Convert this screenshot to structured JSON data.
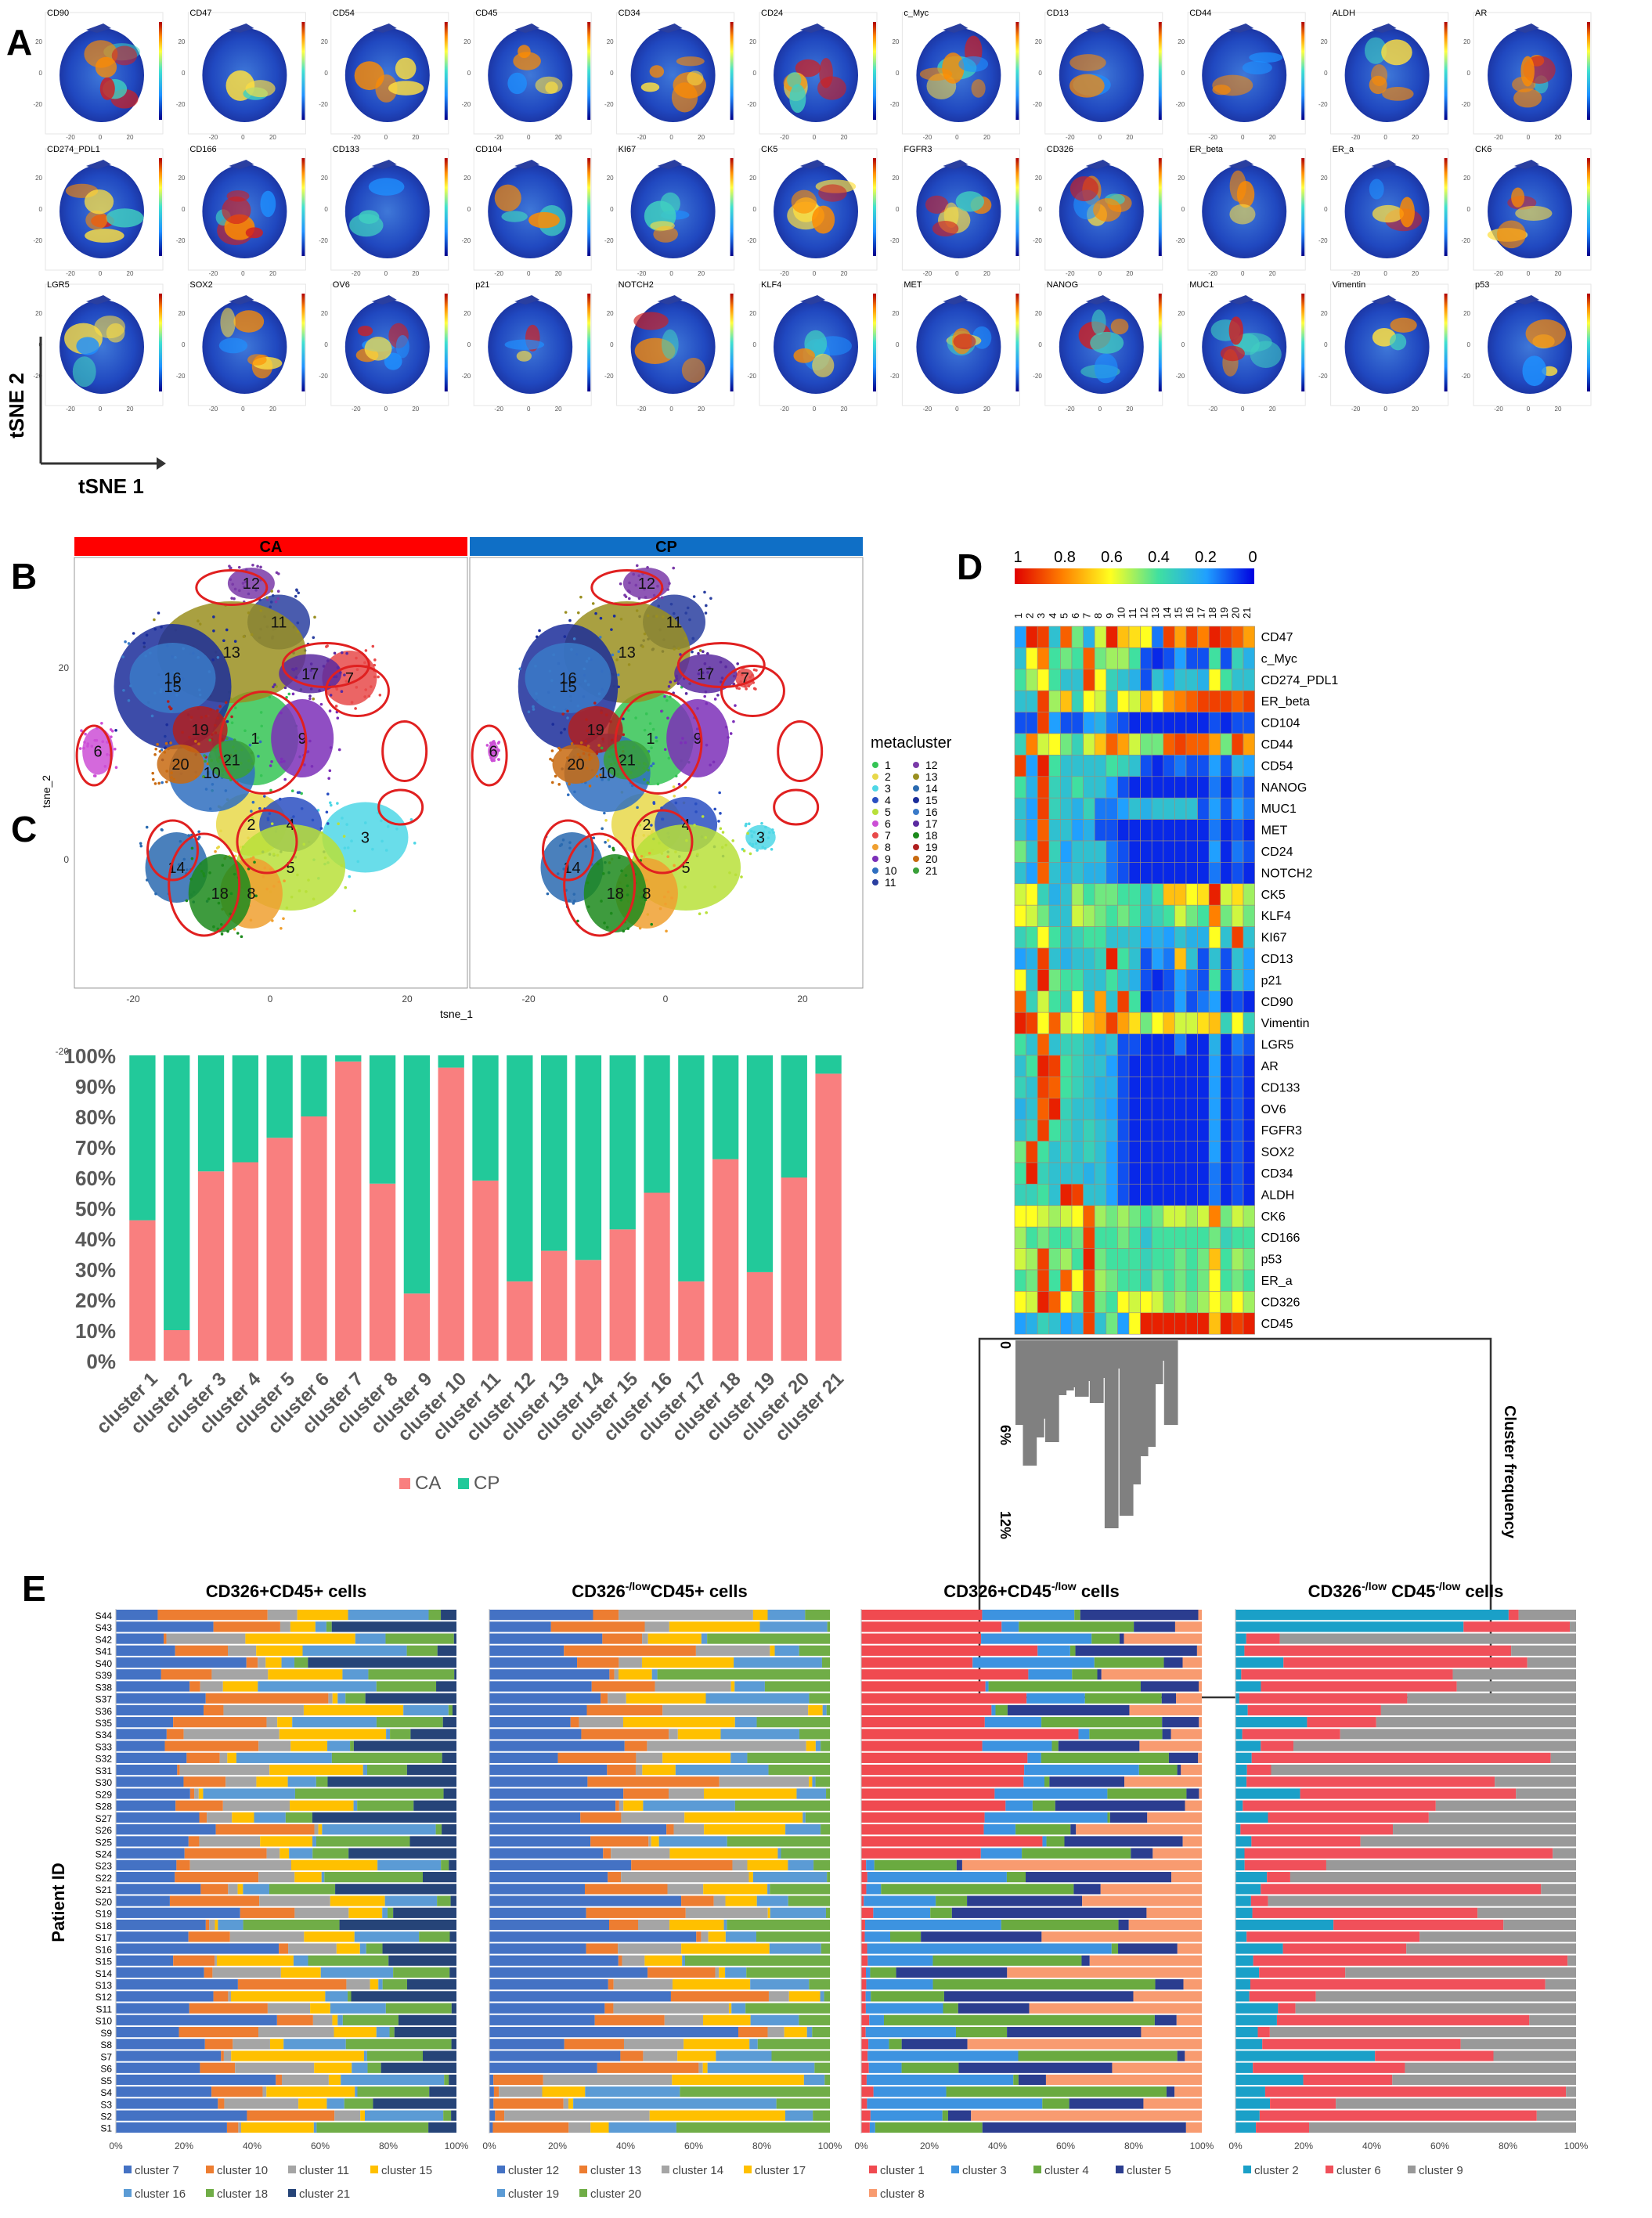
{
  "panels": {
    "A": "A",
    "B": "B",
    "C": "C",
    "D": "D",
    "E": "E"
  },
  "colors": {
    "CA": "#f97f7f",
    "CP": "#22c99a",
    "header_CA": "#ff0000",
    "header_CP": "#0f6fc6",
    "heat_low": "#0000e0",
    "heat_high": "#e00000",
    "freq_bar": "#808080",
    "circle": "#e02020"
  },
  "panel_a": {
    "axis_y": "tSNE 2",
    "axis_x": "tSNE 1",
    "markers": [
      [
        "CD90",
        "CD47",
        "CD54",
        "CD45",
        "CD34",
        "CD24",
        "c_Myc",
        "CD13",
        "CD44",
        "ALDH",
        "AR"
      ],
      [
        "CD274_PDL1",
        "CD166",
        "CD133",
        "CD104",
        "KI67",
        "CK5",
        "FGFR3",
        "CD326",
        "ER_beta",
        "ER_a",
        "CK6"
      ],
      [
        "LGR5",
        "SOX2",
        "OV6",
        "p21",
        "NOTCH2",
        "KLF4",
        "MET",
        "NANOG",
        "MUC1",
        "Vimentin",
        "p53"
      ]
    ],
    "tick_x": [
      "-20",
      "0",
      "20"
    ],
    "tick_y": [
      "20",
      "0",
      "-20"
    ]
  },
  "panel_b": {
    "facets": [
      "CA",
      "CP"
    ],
    "x_label": "tsne_1",
    "y_label": "tsne_2",
    "x_ticks": [
      "-20",
      "0",
      "20"
    ],
    "y_ticks": [
      "20",
      "0",
      "-20"
    ],
    "legend_title": "metacluster",
    "clusters": [
      "1",
      "2",
      "3",
      "4",
      "5",
      "6",
      "7",
      "8",
      "9",
      "10",
      "11",
      "12",
      "13",
      "14",
      "15",
      "16",
      "17",
      "18",
      "19",
      "20",
      "21"
    ],
    "cluster_colors": [
      "#35c455",
      "#e8d84a",
      "#4fd7e6",
      "#2a4fc2",
      "#b8e03a",
      "#cc4fd6",
      "#e84a4a",
      "#f0a030",
      "#7c2fb8",
      "#2f6fc0",
      "#2a3fa0",
      "#7a3aa8",
      "#9a8f20",
      "#2a6ab0",
      "#1b2d9a",
      "#3a7ac8",
      "#5a2aa0",
      "#1c8a1c",
      "#b02020",
      "#c86a10",
      "#3aa03a"
    ]
  },
  "chart_data": [
    {
      "type": "bar",
      "stacked": true,
      "categories": [
        "cluster 1",
        "cluster 2",
        "cluster 3",
        "cluster 4",
        "cluster 5",
        "cluster 6",
        "cluster 7",
        "cluster 8",
        "cluster 9",
        "cluster 10",
        "cluster 11",
        "cluster 12",
        "cluster 13",
        "cluster 14",
        "cluster 15",
        "cluster 16",
        "cluster 17",
        "cluster 18",
        "cluster 19",
        "cluster 20",
        "cluster 21"
      ],
      "series": [
        {
          "name": "CA",
          "values": [
            46,
            10,
            62,
            65,
            73,
            80,
            98,
            58,
            22,
            96,
            59,
            26,
            36,
            33,
            43,
            55,
            26,
            66,
            29,
            60,
            94
          ]
        },
        {
          "name": "CP",
          "values": [
            54,
            90,
            38,
            35,
            27,
            20,
            2,
            42,
            78,
            4,
            41,
            74,
            64,
            67,
            57,
            45,
            74,
            34,
            71,
            40,
            6
          ]
        }
      ],
      "y_ticks": [
        "0%",
        "10%",
        "20%",
        "30%",
        "40%",
        "50%",
        "60%",
        "70%",
        "80%",
        "90%",
        "100%"
      ],
      "ylim": [
        0,
        100
      ],
      "legend": [
        "CA",
        "CP"
      ],
      "legend_placement": "bottom"
    },
    {
      "type": "heatmap",
      "colorbar_ticks": [
        "1",
        "0.8",
        "0.6",
        "0.4",
        "0.2",
        "0"
      ],
      "columns": [
        "1",
        "2",
        "3",
        "4",
        "5",
        "6",
        "7",
        "8",
        "9",
        "10",
        "11",
        "12",
        "13",
        "14",
        "15",
        "16",
        "17",
        "18",
        "19",
        "20",
        "21"
      ],
      "rows": [
        "CD47",
        "c_Myc",
        "CD274_PDL1",
        "ER_beta",
        "CD104",
        "CD44",
        "CD54",
        "NANOG",
        "MUC1",
        "MET",
        "CD24",
        "NOTCH2",
        "CK5",
        "KLF4",
        "KI67",
        "CD13",
        "p21",
        "CD90",
        "Vimentin",
        "LGR5",
        "AR",
        "CD133",
        "OV6",
        "FGFR3",
        "SOX2",
        "CD34",
        "ALDH",
        "CK6",
        "CD166",
        "p53",
        "ER_a",
        "CD326",
        "CD45"
      ],
      "values": [
        [
          0.2,
          0.95,
          0.9,
          0.3,
          0.85,
          0.45,
          0.25,
          0.55,
          0.95,
          0.7,
          0.65,
          0.6,
          0.15,
          0.9,
          0.75,
          0.9,
          0.8,
          0.95,
          0.9,
          0.85,
          0.75
        ],
        [
          0.3,
          0.6,
          0.8,
          0.4,
          0.45,
          0.4,
          0.85,
          0.45,
          0.5,
          0.5,
          0.4,
          0.1,
          0.05,
          0.1,
          0.2,
          0.1,
          0.1,
          0.4,
          0.1,
          0.35,
          0.25
        ],
        [
          0.4,
          0.5,
          0.6,
          0.4,
          0.3,
          0.3,
          0.9,
          0.6,
          0.35,
          0.3,
          0.25,
          0.1,
          0.3,
          0.2,
          0.3,
          0.3,
          0.25,
          0.6,
          0.4,
          0.3,
          0.3
        ],
        [
          0.3,
          0.3,
          0.9,
          0.5,
          0.7,
          0.35,
          0.6,
          0.55,
          0.3,
          0.6,
          0.55,
          0.7,
          0.6,
          0.75,
          0.8,
          0.85,
          0.9,
          0.9,
          0.9,
          0.85,
          0.9
        ],
        [
          0.1,
          0.1,
          0.9,
          0.2,
          0.1,
          0.1,
          0.2,
          0.25,
          0.15,
          0.1,
          0.05,
          0.05,
          0.05,
          0.05,
          0.05,
          0.05,
          0.05,
          0.1,
          0.05,
          0.1,
          0.1
        ],
        [
          0.35,
          0.8,
          0.55,
          0.6,
          0.45,
          0.35,
          0.55,
          0.7,
          0.85,
          0.75,
          0.55,
          0.45,
          0.45,
          0.85,
          0.9,
          0.85,
          0.85,
          0.75,
          0.45,
          0.9,
          0.75
        ],
        [
          0.9,
          0.2,
          0.95,
          0.4,
          0.3,
          0.3,
          0.3,
          0.3,
          0.4,
          0.35,
          0.3,
          0.1,
          0.05,
          0.1,
          0.15,
          0.1,
          0.1,
          0.2,
          0.1,
          0.25,
          0.2
        ],
        [
          0.4,
          0.25,
          0.9,
          0.35,
          0.3,
          0.4,
          0.3,
          0.3,
          0.2,
          0.1,
          0.05,
          0.05,
          0.05,
          0.05,
          0.05,
          0.05,
          0.05,
          0.15,
          0.05,
          0.15,
          0.1
        ],
        [
          0.3,
          0.2,
          0.9,
          0.35,
          0.3,
          0.25,
          0.35,
          0.15,
          0.15,
          0.2,
          0.3,
          0.25,
          0.3,
          0.3,
          0.3,
          0.3,
          0.1,
          0.2,
          0.1,
          0.2,
          0.15
        ],
        [
          0.3,
          0.2,
          0.85,
          0.3,
          0.3,
          0.2,
          0.25,
          0.1,
          0.1,
          0.05,
          0.05,
          0.05,
          0.05,
          0.05,
          0.05,
          0.05,
          0.05,
          0.15,
          0.05,
          0.1,
          0.05
        ],
        [
          0.45,
          0.3,
          0.9,
          0.35,
          0.2,
          0.3,
          0.3,
          0.3,
          0.15,
          0.1,
          0.05,
          0.05,
          0.05,
          0.05,
          0.05,
          0.05,
          0.05,
          0.2,
          0.05,
          0.15,
          0.1
        ],
        [
          0.3,
          0.2,
          0.85,
          0.3,
          0.25,
          0.3,
          0.25,
          0.25,
          0.15,
          0.1,
          0.05,
          0.05,
          0.05,
          0.05,
          0.05,
          0.05,
          0.05,
          0.15,
          0.05,
          0.1,
          0.05
        ],
        [
          0.55,
          0.6,
          0.35,
          0.25,
          0.3,
          0.5,
          0.4,
          0.45,
          0.45,
          0.4,
          0.4,
          0.3,
          0.4,
          0.7,
          0.7,
          0.6,
          0.65,
          0.95,
          0.55,
          0.65,
          0.5
        ],
        [
          0.6,
          0.55,
          0.45,
          0.3,
          0.3,
          0.55,
          0.5,
          0.45,
          0.4,
          0.45,
          0.4,
          0.3,
          0.35,
          0.4,
          0.55,
          0.45,
          0.4,
          0.8,
          0.45,
          0.55,
          0.45
        ],
        [
          0.35,
          0.4,
          0.6,
          0.4,
          0.3,
          0.35,
          0.4,
          0.4,
          0.3,
          0.3,
          0.3,
          0.2,
          0.25,
          0.2,
          0.3,
          0.25,
          0.25,
          0.6,
          0.3,
          0.9,
          0.3
        ],
        [
          0.2,
          0.25,
          0.9,
          0.3,
          0.25,
          0.3,
          0.3,
          0.35,
          0.95,
          0.4,
          0.3,
          0.1,
          0.2,
          0.15,
          0.7,
          0.3,
          0.1,
          0.3,
          0.1,
          0.3,
          0.2
        ],
        [
          0.6,
          0.3,
          0.95,
          0.45,
          0.4,
          0.4,
          0.3,
          0.3,
          0.4,
          0.3,
          0.25,
          0.1,
          0.05,
          0.1,
          0.2,
          0.15,
          0.1,
          0.4,
          0.1,
          0.3,
          0.2
        ],
        [
          0.85,
          0.35,
          0.55,
          0.4,
          0.35,
          0.6,
          0.3,
          0.75,
          0.3,
          0.9,
          0.4,
          0.05,
          0.1,
          0.1,
          0.2,
          0.1,
          0.15,
          0.2,
          0.05,
          0.1,
          0.05
        ],
        [
          0.95,
          0.9,
          0.6,
          0.85,
          0.55,
          0.6,
          0.7,
          0.75,
          0.9,
          0.75,
          0.65,
          0.45,
          0.6,
          0.7,
          0.55,
          0.55,
          0.65,
          0.7,
          0.35,
          0.6,
          0.35
        ],
        [
          0.4,
          0.3,
          0.85,
          0.3,
          0.35,
          0.35,
          0.3,
          0.25,
          0.3,
          0.1,
          0.1,
          0.05,
          0.05,
          0.05,
          0.15,
          0.05,
          0.05,
          0.25,
          0.05,
          0.15,
          0.1
        ],
        [
          0.3,
          0.4,
          0.95,
          0.9,
          0.4,
          0.35,
          0.3,
          0.3,
          0.2,
          0.1,
          0.05,
          0.05,
          0.05,
          0.05,
          0.05,
          0.05,
          0.05,
          0.2,
          0.05,
          0.1,
          0.05
        ],
        [
          0.35,
          0.3,
          0.9,
          0.85,
          0.4,
          0.35,
          0.3,
          0.25,
          0.25,
          0.1,
          0.05,
          0.05,
          0.05,
          0.05,
          0.05,
          0.05,
          0.05,
          0.2,
          0.05,
          0.1,
          0.05
        ],
        [
          0.25,
          0.3,
          0.85,
          0.95,
          0.35,
          0.3,
          0.3,
          0.25,
          0.2,
          0.1,
          0.05,
          0.05,
          0.05,
          0.05,
          0.05,
          0.05,
          0.05,
          0.2,
          0.05,
          0.1,
          0.05
        ],
        [
          0.3,
          0.35,
          0.9,
          0.4,
          0.35,
          0.3,
          0.35,
          0.3,
          0.25,
          0.1,
          0.05,
          0.05,
          0.05,
          0.05,
          0.05,
          0.05,
          0.05,
          0.2,
          0.05,
          0.1,
          0.05
        ],
        [
          0.45,
          0.9,
          0.4,
          0.3,
          0.35,
          0.3,
          0.35,
          0.3,
          0.2,
          0.1,
          0.05,
          0.05,
          0.05,
          0.05,
          0.05,
          0.05,
          0.05,
          0.2,
          0.05,
          0.1,
          0.05
        ],
        [
          0.4,
          0.95,
          0.35,
          0.3,
          0.3,
          0.3,
          0.25,
          0.3,
          0.2,
          0.1,
          0.05,
          0.05,
          0.05,
          0.05,
          0.05,
          0.05,
          0.05,
          0.15,
          0.05,
          0.1,
          0.05
        ],
        [
          0.35,
          0.35,
          0.4,
          0.3,
          0.95,
          0.9,
          0.3,
          0.3,
          0.2,
          0.1,
          0.05,
          0.05,
          0.05,
          0.05,
          0.05,
          0.05,
          0.05,
          0.15,
          0.05,
          0.1,
          0.05
        ],
        [
          0.6,
          0.6,
          0.55,
          0.5,
          0.55,
          0.6,
          0.85,
          0.5,
          0.45,
          0.5,
          0.45,
          0.4,
          0.45,
          0.55,
          0.55,
          0.5,
          0.55,
          0.8,
          0.45,
          0.55,
          0.5
        ],
        [
          0.5,
          0.4,
          0.45,
          0.4,
          0.4,
          0.45,
          0.9,
          0.4,
          0.4,
          0.45,
          0.4,
          0.3,
          0.4,
          0.4,
          0.4,
          0.4,
          0.4,
          0.45,
          0.35,
          0.4,
          0.4
        ],
        [
          0.55,
          0.5,
          0.9,
          0.45,
          0.5,
          0.4,
          0.95,
          0.45,
          0.4,
          0.4,
          0.4,
          0.35,
          0.4,
          0.4,
          0.45,
          0.4,
          0.45,
          0.7,
          0.4,
          0.5,
          0.45
        ],
        [
          0.4,
          0.45,
          0.9,
          0.4,
          0.85,
          0.6,
          0.9,
          0.5,
          0.45,
          0.4,
          0.4,
          0.35,
          0.45,
          0.4,
          0.45,
          0.4,
          0.45,
          0.6,
          0.4,
          0.45,
          0.4
        ],
        [
          0.6,
          0.55,
          0.95,
          0.85,
          0.6,
          0.45,
          0.9,
          0.45,
          0.4,
          0.6,
          0.55,
          0.6,
          0.55,
          0.45,
          0.5,
          0.45,
          0.5,
          0.6,
          0.5,
          0.6,
          0.5
        ],
        [
          0.2,
          0.25,
          0.35,
          0.3,
          0.2,
          0.25,
          0.9,
          0.3,
          0.45,
          0.2,
          0.6,
          0.95,
          0.95,
          0.95,
          0.95,
          0.95,
          0.95,
          0.7,
          0.95,
          0.9,
          0.95
        ]
      ]
    },
    {
      "type": "bar",
      "label": "Cluster frequency",
      "y_ticks": [
        "0",
        "6%",
        "12%"
      ],
      "ylim": [
        0,
        12
      ],
      "categories": [
        "1",
        "2",
        "3",
        "4",
        "5",
        "6",
        "7",
        "8",
        "9",
        "10",
        "11",
        "12",
        "13",
        "14",
        "15",
        "16",
        "17",
        "18",
        "19",
        "20",
        "21"
      ],
      "values": [
        5.4,
        8.0,
        6.2,
        5.0,
        6.5,
        3.5,
        3.2,
        3.0,
        3.6,
        2.6,
        4.0,
        2.4,
        12.0,
        1.8,
        11.2,
        9.2,
        7.4,
        6.8,
        2.8,
        1.3,
        5.4
      ]
    }
  ],
  "panel_e": {
    "y_label": "Patient ID",
    "patients": [
      "S44",
      "S43",
      "S42",
      "S41",
      "S40",
      "S39",
      "S38",
      "S37",
      "S36",
      "S35",
      "S34",
      "S33",
      "S32",
      "S31",
      "S30",
      "S29",
      "S28",
      "S27",
      "S26",
      "S25",
      "S24",
      "S23",
      "S22",
      "S21",
      "S20",
      "S19",
      "S18",
      "S17",
      "S16",
      "S15",
      "S14",
      "S13",
      "S12",
      "S11",
      "S10",
      "S9",
      "S8",
      "S7",
      "S6",
      "S5",
      "S4",
      "S3",
      "S2",
      "S1"
    ],
    "x_ticks": [
      "0%",
      "20%",
      "40%",
      "60%",
      "80%",
      "100%"
    ],
    "groups": [
      {
        "title": "CD326+CD45+ cells",
        "clusters": [
          "cluster 7",
          "cluster 10",
          "cluster 11",
          "cluster 15",
          "cluster 16",
          "cluster 18",
          "cluster 21"
        ],
        "colors": [
          "#4472c4",
          "#ed7d31",
          "#a5a5a5",
          "#ffc000",
          "#5b9bd5",
          "#70ad47",
          "#264478"
        ]
      },
      {
        "title_pre": "CD326",
        "title_sup": "-/low",
        "title_post": "CD45+ cells",
        "clusters": [
          "cluster 12",
          "cluster 13",
          "cluster 14",
          "cluster 17",
          "cluster 19",
          "cluster 20"
        ],
        "colors": [
          "#4472c4",
          "#ed7d31",
          "#a5a5a5",
          "#ffc000",
          "#5b9bd5",
          "#70ad47"
        ]
      },
      {
        "title_pre": "CD326+CD45",
        "title_sup": "-/low",
        "title_post": " cells",
        "clusters": [
          "cluster 1",
          "cluster 3",
          "cluster 4",
          "cluster 5",
          "cluster 8"
        ],
        "colors": [
          "#f04a50",
          "#3d93e0",
          "#6aaa40",
          "#2b3d8f",
          "#f89b70"
        ]
      },
      {
        "title_pre": "CD326",
        "title_sup": "-/low",
        "title_mid": " CD45",
        "title_sup2": "-/low",
        "title_post": " cells",
        "clusters": [
          "cluster 2",
          "cluster 6",
          "cluster 9"
        ],
        "colors": [
          "#1aa0c8",
          "#f0505a",
          "#999999"
        ]
      }
    ]
  }
}
